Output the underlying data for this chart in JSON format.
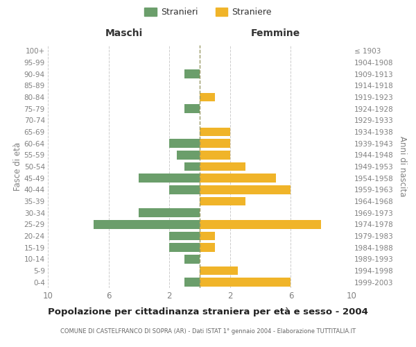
{
  "age_groups": [
    "0-4",
    "5-9",
    "10-14",
    "15-19",
    "20-24",
    "25-29",
    "30-34",
    "35-39",
    "40-44",
    "45-49",
    "50-54",
    "55-59",
    "60-64",
    "65-69",
    "70-74",
    "75-79",
    "80-84",
    "85-89",
    "90-94",
    "95-99",
    "100+"
  ],
  "birth_years": [
    "1999-2003",
    "1994-1998",
    "1989-1993",
    "1984-1988",
    "1979-1983",
    "1974-1978",
    "1969-1973",
    "1964-1968",
    "1959-1963",
    "1954-1958",
    "1949-1953",
    "1944-1948",
    "1939-1943",
    "1934-1938",
    "1929-1933",
    "1924-1928",
    "1919-1923",
    "1914-1918",
    "1909-1913",
    "1904-1908",
    "≤ 1903"
  ],
  "males": [
    1,
    0,
    1,
    2,
    2,
    7,
    4,
    0,
    2,
    4,
    1,
    1.5,
    2,
    0,
    0,
    1,
    0,
    0,
    1,
    0,
    0
  ],
  "females": [
    6,
    2.5,
    0,
    1,
    1,
    8,
    0,
    3,
    6,
    5,
    3,
    2,
    2,
    2,
    0,
    0,
    1,
    0,
    0,
    0,
    0
  ],
  "male_color": "#6b9e6b",
  "female_color": "#f0b429",
  "title": "Popolazione per cittadinanza straniera per età e sesso - 2004",
  "subtitle": "COMUNE DI CASTELFRANCO DI SOPRA (AR) - Dati ISTAT 1° gennaio 2004 - Elaborazione TUTTITALIA.IT",
  "xlabel_left": "Maschi",
  "xlabel_right": "Femmine",
  "ylabel_left": "Fasce di età",
  "ylabel_right": "Anni di nascita",
  "legend_male": "Stranieri",
  "legend_female": "Straniere",
  "xlim": 10,
  "background_color": "#ffffff",
  "grid_color": "#cccccc",
  "text_color": "#808080"
}
